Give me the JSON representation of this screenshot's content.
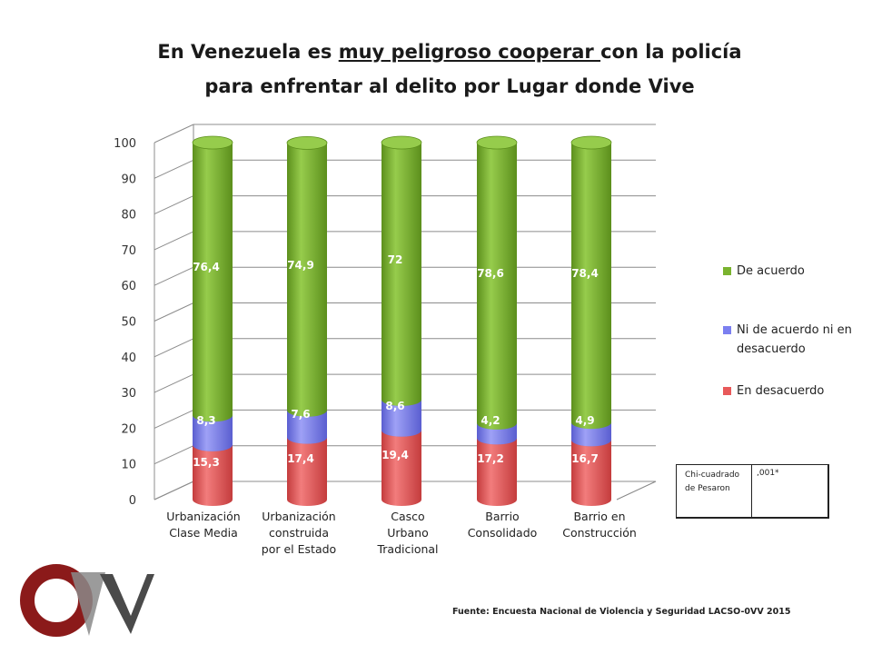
{
  "title": {
    "line1_before": "En Venezuela es ",
    "line1_underlined": "muy peligroso cooperar ",
    "line1_after": "con la policía",
    "line2": "para enfrentar al delito por Lugar donde Vive"
  },
  "chart_data": {
    "type": "bar",
    "stacked": true,
    "style": "3d-cylinder",
    "categories": [
      [
        "Urbanización",
        "Clase Media"
      ],
      [
        "Urbanización",
        "construida",
        "por el Estado"
      ],
      [
        "Casco",
        "Urbano",
        "Tradicional"
      ],
      [
        "Barrio",
        "Consolidado"
      ],
      [
        "Barrio en",
        "Construcción"
      ]
    ],
    "series": [
      {
        "name": "En desacuerdo",
        "values": [
          15.3,
          17.4,
          19.4,
          17.2,
          16.7
        ],
        "labels": [
          "15,3",
          "17,4",
          "19,4",
          "17,2",
          "16,7"
        ],
        "color": "#e8595a"
      },
      {
        "name": "Ni de acuerdo ni en desacuerdo",
        "values": [
          8.3,
          7.6,
          8.6,
          4.2,
          4.9
        ],
        "labels": [
          "8,3",
          "7,6",
          "8,6",
          "4,2",
          "4,9"
        ],
        "color": "#7b7ff0"
      },
      {
        "name": "De acuerdo",
        "values": [
          76.4,
          74.9,
          72,
          78.6,
          78.4
        ],
        "labels": [
          "76,4",
          "74,9",
          "72",
          "78,6",
          "78,4"
        ],
        "color": "#7ab32f"
      }
    ],
    "ylim": [
      0,
      100
    ],
    "yticks": [
      0,
      10,
      20,
      30,
      40,
      50,
      60,
      70,
      80,
      90,
      100
    ],
    "grid": true,
    "legend_position": "right",
    "xlabel": "",
    "ylabel": ""
  },
  "legend": [
    {
      "label": "De acuerdo",
      "color": "#7ab32f"
    },
    {
      "label": "Ni de acuerdo ni en desacuerdo",
      "color": "#7b7ff0"
    },
    {
      "label": "En desacuerdo",
      "color": "#e8595a"
    }
  ],
  "stats_table": {
    "label": "Chi-cuadrado de Pesaron",
    "value": ",001*"
  },
  "source": "Fuente: Encuesta Nacional de Violencia y Seguridad LACSO-0VV 2015",
  "logo": {
    "text": "OVV",
    "primary_color": "#8b1a1a",
    "secondary_color": "#808080"
  }
}
